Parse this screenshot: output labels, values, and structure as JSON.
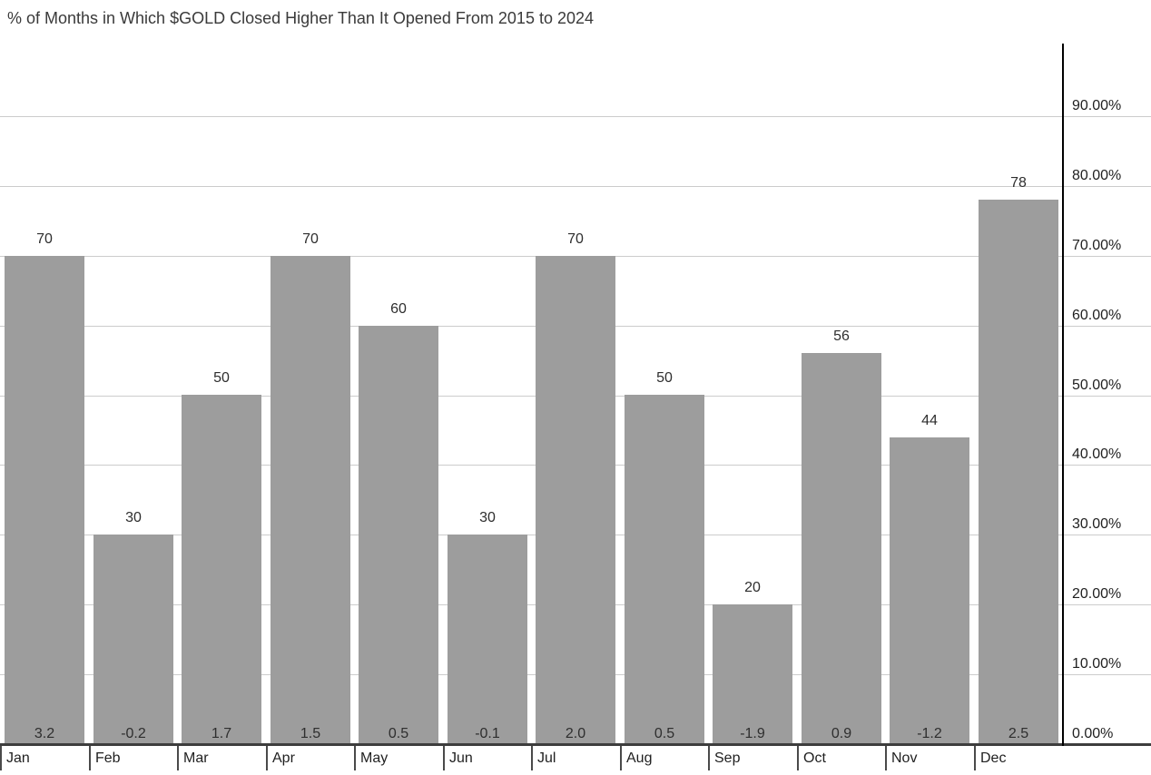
{
  "chart_data": {
    "type": "bar",
    "title": "% of Months in Which $GOLD Closed Higher Than It Opened From 2015 to 2024",
    "categories": [
      "Jan",
      "Feb",
      "Mar",
      "Apr",
      "May",
      "Jun",
      "Jul",
      "Aug",
      "Sep",
      "Oct",
      "Nov",
      "Dec"
    ],
    "series": [
      {
        "name": "pct-of-months-closed-higher",
        "values": [
          70,
          30,
          50,
          70,
          60,
          30,
          70,
          50,
          20,
          56,
          44,
          78
        ],
        "labels": [
          "70",
          "30",
          "50",
          "70",
          "60",
          "30",
          "70",
          "50",
          "20",
          "56",
          "44",
          "78"
        ],
        "label_position": "above-bar"
      },
      {
        "name": "avg-monthly-change",
        "values": [
          3.2,
          -0.2,
          1.7,
          1.5,
          0.5,
          -0.1,
          2.0,
          0.5,
          -1.9,
          0.9,
          -1.2,
          2.5
        ],
        "labels": [
          "3.2",
          "-0.2",
          "1.7",
          "1.5",
          "0.5",
          "-0.1",
          "2.0",
          "0.5",
          "-1.9",
          "0.9",
          "-1.2",
          "2.5"
        ],
        "label_position": "inside-bar-bottom"
      }
    ],
    "xlabel": "",
    "ylabel": "",
    "yaxis": {
      "side": "right",
      "min": 0,
      "max": 100,
      "tick_step": 10,
      "tick_labels": [
        "0.00%",
        "10.00%",
        "20.00%",
        "30.00%",
        "40.00%",
        "50.00%",
        "60.00%",
        "70.00%",
        "80.00%",
        "90.00%"
      ]
    },
    "grid": true,
    "legend": "none",
    "colors": {
      "bar": "#9d9d9d",
      "gridline": "#cccccc",
      "y_axis_line": "#000000",
      "x_axis_line": "#3d3d3d",
      "tick": "#4a4a4a",
      "label_text": "#2e2e2e",
      "title_text": "#3a3a3a",
      "background": "#ffffff"
    }
  }
}
